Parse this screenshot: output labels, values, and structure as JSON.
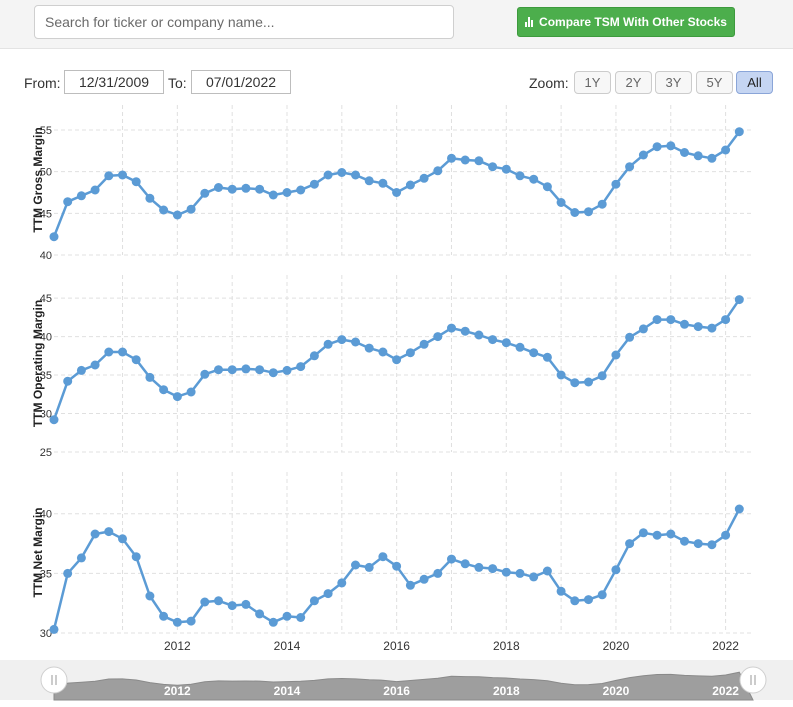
{
  "search": {
    "placeholder": "Search for ticker or company name..."
  },
  "compare_button": {
    "label": "Compare TSM With Other Stocks"
  },
  "range": {
    "from_label": "From:",
    "from_value": "12/31/2009",
    "to_label": "To:",
    "to_value": "07/01/2022"
  },
  "zoom": {
    "label": "Zoom:",
    "options": [
      "1Y",
      "2Y",
      "3Y",
      "5Y",
      "All"
    ],
    "selected": "All"
  },
  "colors": {
    "series": "#5b9bd5",
    "grid": "#e0e0e0",
    "navigator_fill": "#9e9e9e"
  },
  "chart_data": {
    "type": "line",
    "x_range": [
      2009.75,
      2022.5
    ],
    "x_ticks": [
      "2012",
      "2014",
      "2016",
      "2018",
      "2020",
      "2022"
    ],
    "x": [
      2009.75,
      2010.0,
      2010.25,
      2010.5,
      2010.75,
      2011.0,
      2011.25,
      2011.5,
      2011.75,
      2012.0,
      2012.25,
      2012.5,
      2012.75,
      2013.0,
      2013.25,
      2013.5,
      2013.75,
      2014.0,
      2014.25,
      2014.5,
      2014.75,
      2015.0,
      2015.25,
      2015.5,
      2015.75,
      2016.0,
      2016.25,
      2016.5,
      2016.75,
      2017.0,
      2017.25,
      2017.5,
      2017.75,
      2018.0,
      2018.25,
      2018.5,
      2018.75,
      2019.0,
      2019.25,
      2019.5,
      2019.75,
      2020.0,
      2020.25,
      2020.5,
      2020.75,
      2021.0,
      2021.25,
      2021.5,
      2021.75,
      2022.0,
      2022.25
    ],
    "series": [
      {
        "name": "TTM Gross Margin",
        "yticks": [
          40,
          45,
          50,
          55
        ],
        "ylim": [
          40,
          58
        ],
        "values": [
          42.2,
          46.4,
          47.1,
          47.8,
          49.5,
          49.6,
          48.8,
          46.8,
          45.4,
          44.8,
          45.5,
          47.4,
          48.1,
          47.9,
          48.0,
          47.9,
          47.2,
          47.5,
          47.8,
          48.5,
          49.6,
          49.9,
          49.6,
          48.9,
          48.6,
          47.5,
          48.4,
          49.2,
          50.1,
          51.6,
          51.4,
          51.3,
          50.6,
          50.3,
          49.5,
          49.1,
          48.2,
          46.3,
          45.1,
          45.2,
          46.1,
          48.5,
          50.6,
          52.0,
          53.0,
          53.1,
          52.3,
          51.9,
          51.6,
          52.6,
          54.8
        ]
      },
      {
        "name": "TTM Operating Margin",
        "yticks": [
          25,
          30,
          35,
          40,
          45
        ],
        "ylim": [
          25,
          48
        ],
        "values": [
          29.2,
          34.2,
          35.6,
          36.3,
          38.0,
          38.0,
          37.0,
          34.7,
          33.1,
          32.2,
          32.8,
          35.1,
          35.7,
          35.7,
          35.8,
          35.7,
          35.3,
          35.6,
          36.1,
          37.5,
          39.0,
          39.6,
          39.3,
          38.5,
          38.0,
          37.0,
          37.9,
          39.0,
          40.0,
          41.1,
          40.7,
          40.2,
          39.6,
          39.2,
          38.6,
          37.9,
          37.3,
          35.0,
          34.0,
          34.1,
          34.9,
          37.6,
          39.9,
          41.0,
          42.2,
          42.2,
          41.6,
          41.3,
          41.1,
          42.2,
          44.8
        ]
      },
      {
        "name": "TTM Net Margin",
        "yticks": [
          30,
          35,
          40
        ],
        "ylim": [
          30,
          43.5
        ],
        "values": [
          30.3,
          35.0,
          36.3,
          38.3,
          38.5,
          37.9,
          36.4,
          33.1,
          31.4,
          30.9,
          31.0,
          32.6,
          32.7,
          32.3,
          32.4,
          31.6,
          30.9,
          31.4,
          31.3,
          32.7,
          33.3,
          34.2,
          35.7,
          35.5,
          36.4,
          35.6,
          34.0,
          34.5,
          35.0,
          36.2,
          35.8,
          35.5,
          35.4,
          35.1,
          35.0,
          34.7,
          35.2,
          33.5,
          32.7,
          32.8,
          33.2,
          35.3,
          37.5,
          38.4,
          38.2,
          38.3,
          37.7,
          37.5,
          37.4,
          38.2,
          40.4
        ]
      }
    ]
  }
}
